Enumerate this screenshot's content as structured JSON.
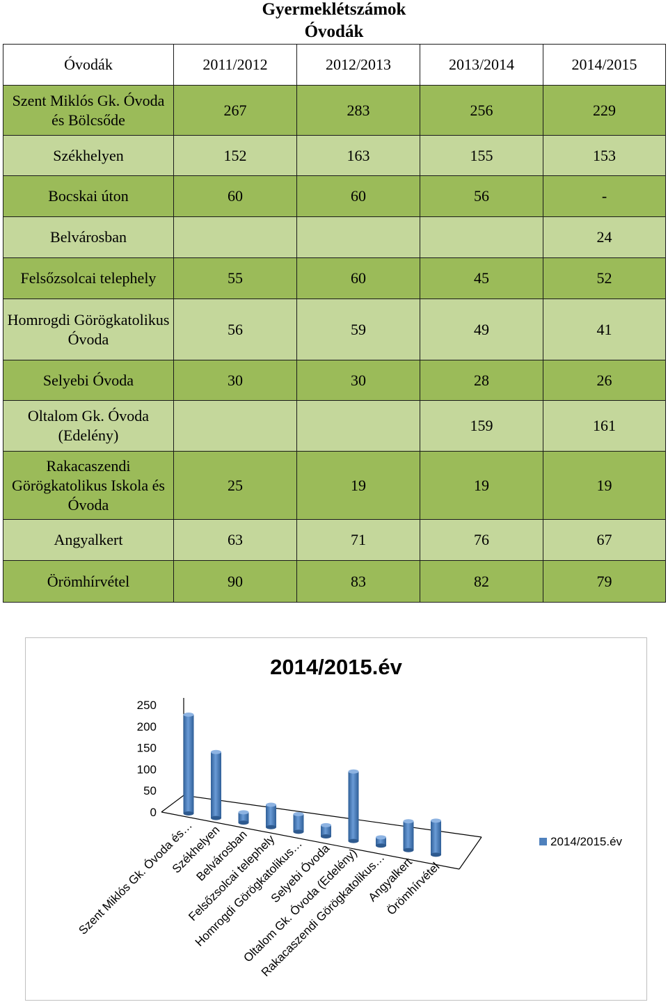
{
  "title": "Gyermeklétszámok",
  "subtitle": "Óvodák",
  "table": {
    "headers": [
      "Óvodák",
      "2011/2012",
      "2012/2013",
      "2013/2014",
      "2014/2015"
    ],
    "rows": [
      {
        "name": "Szent Miklós Gk. Óvoda és Bölcsőde",
        "values": [
          "267",
          "283",
          "256",
          "229"
        ]
      },
      {
        "name": "Székhelyen",
        "values": [
          "152",
          "163",
          "155",
          "153"
        ]
      },
      {
        "name": "Bocskai úton",
        "values": [
          "60",
          "60",
          "56",
          "-"
        ]
      },
      {
        "name": "Belvárosban",
        "values": [
          "",
          "",
          "",
          "24"
        ]
      },
      {
        "name": "Felsőzsolcai telephely",
        "values": [
          "55",
          "60",
          "45",
          "52"
        ]
      },
      {
        "name": "Homrogdi Görögkatolikus Óvoda",
        "values": [
          "56",
          "59",
          "49",
          "41"
        ]
      },
      {
        "name": "Selyebi Óvoda",
        "values": [
          "30",
          "30",
          "28",
          "26"
        ]
      },
      {
        "name": "Oltalom Gk. Óvoda (Edelény)",
        "values": [
          "",
          "",
          "159",
          "161"
        ]
      },
      {
        "name": "Rakacaszendi Görögkatolikus Iskola és Óvoda",
        "values": [
          "25",
          "19",
          "19",
          "19"
        ]
      },
      {
        "name": "Angyalkert",
        "values": [
          "63",
          "71",
          "76",
          "67"
        ]
      },
      {
        "name": "Örömhírvétel",
        "values": [
          "90",
          "83",
          "82",
          "79"
        ]
      }
    ]
  },
  "chart_data": {
    "type": "bar",
    "title": "2014/2015.év",
    "categories": [
      "Szent Miklós Gk. Óvoda és…",
      "Székhelyen",
      "Belvárosban",
      "Felsőzsolcai telephely",
      "Homrogdi Görögkatolikus…",
      "Selyebi Óvoda",
      "Oltalom Gk. Óvoda (Edelény)",
      "Rakacaszendi Görögkatolikus…",
      "Angyalkert",
      "Örömhírvétel"
    ],
    "series": [
      {
        "name": "2014/2015.év",
        "values": [
          229,
          153,
          24,
          52,
          41,
          26,
          161,
          19,
          67,
          79
        ],
        "color": "#4f81bd"
      }
    ],
    "yticks": [
      "0",
      "50",
      "100",
      "150",
      "200",
      "250"
    ],
    "ylim": [
      0,
      250
    ],
    "legend": "right",
    "xlabel": "",
    "ylabel": ""
  }
}
